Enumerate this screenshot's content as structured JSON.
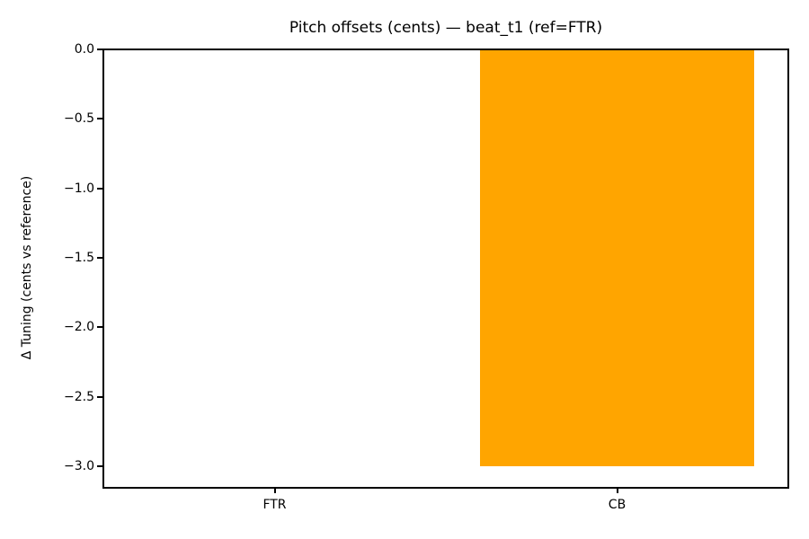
{
  "chart_data": {
    "type": "bar",
    "title": "Pitch offsets (cents) — beat_t1 (ref=FTR)",
    "ylabel": "Δ Tuning (cents vs reference)",
    "categories": [
      "FTR",
      "CB"
    ],
    "values": [
      0,
      -3.0
    ],
    "bar_color": "#FFA500",
    "bar_width_frac": 0.8,
    "ylim": [
      -3.15,
      0.0
    ],
    "yticks": [
      0.0,
      -0.5,
      -1.0,
      -1.5,
      -2.0,
      -2.5,
      -3.0
    ],
    "ytick_labels": [
      "0.0",
      "−0.5",
      "−1.0",
      "−1.5",
      "−2.0",
      "−2.5",
      "−3.0"
    ],
    "grid": false,
    "legend": "none",
    "spine_color": "#000000",
    "text_color": "#000000",
    "background_color": "#ffffff"
  }
}
